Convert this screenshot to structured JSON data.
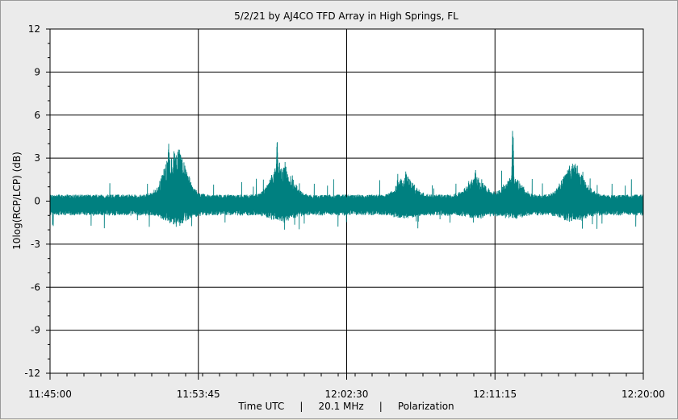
{
  "chart_data": {
    "type": "line",
    "title": "5/2/21  by  AJ4CO TFD Array  in  High Springs, FL",
    "ylabel": "10log(RCP/LCP)  (dB)",
    "xlabel": "Time UTC     |     20.1 MHz     |     Polarization",
    "ylim": [
      -12,
      12
    ],
    "y_ticks": [
      "12",
      "9",
      "6",
      "3",
      "0",
      "-3",
      "-6",
      "-9",
      "-12"
    ],
    "x_ticks": [
      "11:45:00",
      "11:53:45",
      "12:02:30",
      "12:11:15",
      "12:20:00"
    ],
    "x_range_minutes": [
      0,
      35
    ],
    "grid": true,
    "line_color": "#008080",
    "series": [
      {
        "baseline": {
          "mean_db": -0.2,
          "noise_amplitude_db": 0.6
        },
        "peaks": [
          {
            "t_min": 7.0,
            "y": 4.0
          },
          {
            "t_min": 7.4,
            "y": 3.1
          },
          {
            "t_min": 7.8,
            "y": 2.8
          },
          {
            "t_min": 13.4,
            "y": 4.3
          },
          {
            "t_min": 13.9,
            "y": 2.6
          },
          {
            "t_min": 21.0,
            "y": 2.2
          },
          {
            "t_min": 25.1,
            "y": 2.3
          },
          {
            "t_min": 27.3,
            "y": 5.2
          },
          {
            "t_min": 30.6,
            "y": 2.4
          },
          {
            "t_min": 31.2,
            "y": 2.0
          }
        ]
      }
    ]
  }
}
